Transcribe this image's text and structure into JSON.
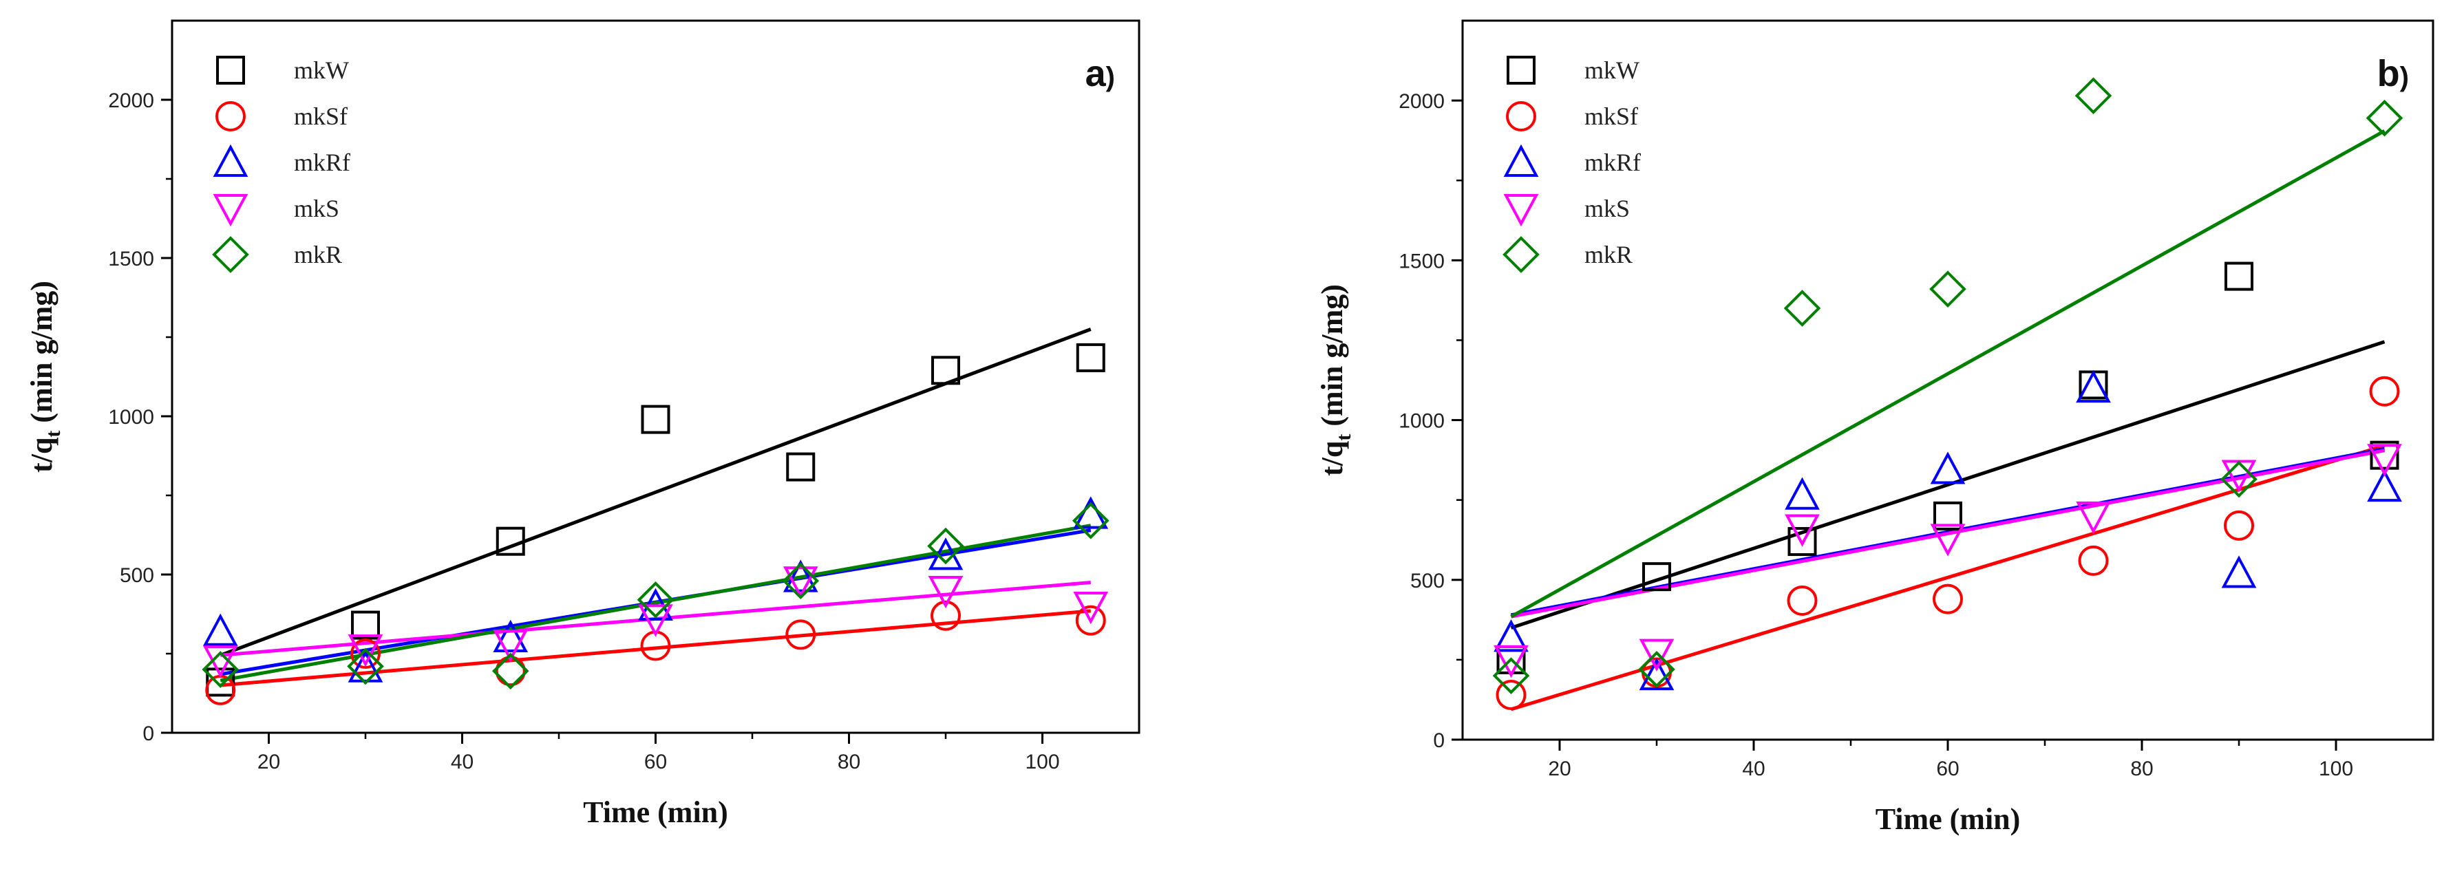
{
  "chart_data": [
    {
      "type": "scatter",
      "panel_label": "a",
      "panel_label_suffix": ")",
      "xlabel": "Time (min)",
      "ylabel_main": "t/q",
      "ylabel_sub": "t",
      "ylabel_unit": " (min g/mg)",
      "xlim": [
        10,
        110
      ],
      "ylim": [
        0,
        2250
      ],
      "xticks": [
        20,
        40,
        60,
        80,
        100
      ],
      "yticks": [
        0,
        500,
        1000,
        1500,
        2000
      ],
      "legend_position": "top-left",
      "series": [
        {
          "name": "mkW",
          "marker": "square",
          "color": "#000000",
          "x": [
            15,
            30,
            45,
            60,
            75,
            90,
            105
          ],
          "y": [
            160,
            340,
            605,
            990,
            840,
            1145,
            1185
          ],
          "fit": [
            [
              15,
              245
            ],
            [
              105,
              1275
            ]
          ]
        },
        {
          "name": "mkSf",
          "marker": "circle",
          "color": "#ff0000",
          "x": [
            15,
            30,
            45,
            60,
            75,
            90,
            105
          ],
          "y": [
            135,
            250,
            195,
            275,
            310,
            370,
            355
          ],
          "fit": [
            [
              15,
              150
            ],
            [
              105,
              385
            ]
          ]
        },
        {
          "name": "mkRf",
          "marker": "triangle-up",
          "color": "#0000ff",
          "x": [
            15,
            30,
            45,
            60,
            75,
            90,
            105
          ],
          "y": [
            320,
            205,
            300,
            400,
            490,
            560,
            690
          ],
          "fit": [
            [
              15,
              185
            ],
            [
              105,
              640
            ]
          ]
        },
        {
          "name": "mkS",
          "marker": "triangle-down",
          "color": "#ff00ff",
          "x": [
            15,
            30,
            45,
            60,
            75,
            90,
            105
          ],
          "y": [
            230,
            265,
            280,
            360,
            480,
            450,
            400
          ],
          "fit": [
            [
              15,
              245
            ],
            [
              105,
              475
            ]
          ]
        },
        {
          "name": "mkR",
          "marker": "diamond",
          "color": "#008000",
          "x": [
            15,
            30,
            45,
            60,
            75,
            90,
            105
          ],
          "y": [
            200,
            210,
            195,
            420,
            480,
            590,
            670
          ],
          "fit": [
            [
              15,
              165
            ],
            [
              105,
              655
            ]
          ]
        }
      ]
    },
    {
      "type": "scatter",
      "panel_label": "b",
      "panel_label_suffix": ")",
      "xlabel": "Time (min)",
      "ylabel_main": "t/q",
      "ylabel_sub": "t",
      "ylabel_unit": " (min g/mg)",
      "xlim": [
        10,
        110
      ],
      "ylim": [
        0,
        2250
      ],
      "xticks": [
        20,
        40,
        60,
        80,
        100
      ],
      "yticks": [
        0,
        500,
        1000,
        1500,
        2000
      ],
      "legend_position": "top-left",
      "series": [
        {
          "name": "mkW",
          "marker": "square",
          "color": "#000000",
          "x": [
            15,
            30,
            45,
            60,
            75,
            90,
            105
          ],
          "y": [
            250,
            510,
            620,
            700,
            1110,
            1450,
            890
          ],
          "fit": [
            [
              15,
              350
            ],
            [
              105,
              1245
            ]
          ]
        },
        {
          "name": "mkSf",
          "marker": "circle",
          "color": "#ff0000",
          "x": [
            15,
            30,
            45,
            60,
            75,
            90,
            105
          ],
          "y": [
            140,
            210,
            435,
            440,
            560,
            670,
            1090
          ],
          "fit": [
            [
              15,
              95
            ],
            [
              105,
              920
            ]
          ]
        },
        {
          "name": "mkRf",
          "marker": "triangle-up",
          "color": "#0000ff",
          "x": [
            15,
            30,
            45,
            60,
            75,
            90,
            105
          ],
          "y": [
            320,
            200,
            765,
            845,
            1100,
            520,
            790
          ],
          "fit": [
            [
              15,
              390
            ],
            [
              105,
              910
            ]
          ]
        },
        {
          "name": "mkS",
          "marker": "triangle-down",
          "color": "#ff00ff",
          "x": [
            15,
            30,
            45,
            60,
            75,
            90,
            105
          ],
          "y": [
            250,
            270,
            660,
            630,
            700,
            830,
            880
          ],
          "fit": [
            [
              15,
              385
            ],
            [
              105,
              905
            ]
          ]
        },
        {
          "name": "mkR",
          "marker": "diamond",
          "color": "#008000",
          "x": [
            15,
            30,
            45,
            60,
            75,
            90,
            105
          ],
          "y": [
            200,
            220,
            1350,
            1410,
            2015,
            815,
            1945
          ],
          "fit": [
            [
              15,
              385
            ],
            [
              105,
              1905
            ]
          ]
        }
      ]
    }
  ]
}
